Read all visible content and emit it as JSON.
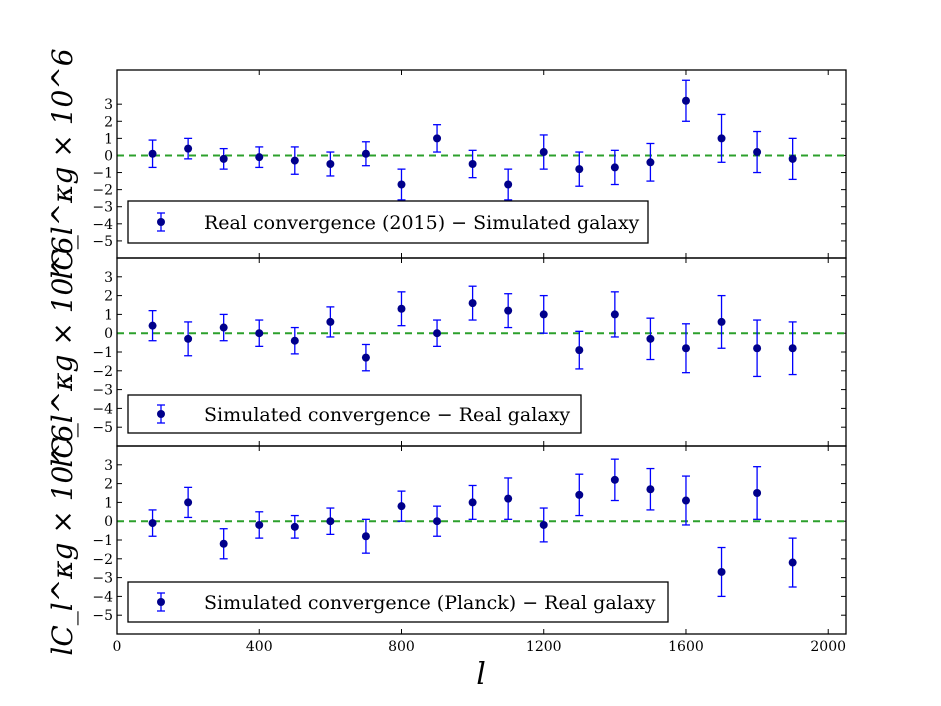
{
  "figure": {
    "xlabel": "l",
    "marker_color": "#00008B",
    "errorbar_color": "#0000FF",
    "zero_line_color": "#2CA02C"
  },
  "chart_data": [
    {
      "type": "scatter",
      "ylabel": "lC_l^κg × 10^6",
      "legend": "Real convergence (2015) − Simulated galaxy",
      "legend_position": "bottom-left",
      "xlim": [
        0,
        2050
      ],
      "ylim": [
        -6,
        5
      ],
      "yticks": [
        "3",
        "2",
        "1",
        "0",
        "−1",
        "−2",
        "−3",
        "−4",
        "−5"
      ],
      "xticks": [],
      "zero_line": true,
      "series": [
        {
          "x": [
            100,
            200,
            300,
            400,
            500,
            600,
            700,
            800,
            900,
            1000,
            1100,
            1200,
            1300,
            1400,
            1500,
            1600,
            1700,
            1800,
            1900
          ],
          "y": [
            0.1,
            0.4,
            -0.2,
            -0.1,
            -0.3,
            -0.5,
            0.1,
            -1.7,
            1.0,
            -0.5,
            -1.7,
            0.2,
            -0.8,
            -0.7,
            -0.4,
            3.2,
            1.0,
            0.2,
            -0.2
          ],
          "err": [
            0.8,
            0.6,
            0.6,
            0.6,
            0.8,
            0.7,
            0.7,
            0.9,
            0.8,
            0.8,
            0.9,
            1.0,
            1.0,
            1.0,
            1.1,
            1.2,
            1.4,
            1.2,
            1.2
          ]
        }
      ]
    },
    {
      "type": "scatter",
      "ylabel": "lC_l^κg × 10^6",
      "legend": "Simulated convergence − Real galaxy",
      "legend_position": "bottom-left",
      "xlim": [
        0,
        2050
      ],
      "ylim": [
        -6,
        4
      ],
      "yticks": [
        "3",
        "2",
        "1",
        "0",
        "−1",
        "−2",
        "−3",
        "−4",
        "−5"
      ],
      "xticks": [],
      "zero_line": true,
      "series": [
        {
          "x": [
            100,
            200,
            300,
            400,
            500,
            600,
            700,
            800,
            900,
            1000,
            1100,
            1200,
            1300,
            1400,
            1500,
            1600,
            1700,
            1800,
            1900
          ],
          "y": [
            0.4,
            -0.3,
            0.3,
            0.0,
            -0.4,
            0.6,
            -1.3,
            1.3,
            0.0,
            1.6,
            1.2,
            1.0,
            -0.9,
            1.0,
            -0.3,
            -0.8,
            0.6,
            -0.8,
            -0.8
          ],
          "err": [
            0.8,
            0.9,
            0.7,
            0.7,
            0.7,
            0.8,
            0.7,
            0.9,
            0.7,
            0.9,
            0.9,
            1.0,
            1.0,
            1.2,
            1.1,
            1.3,
            1.4,
            1.5,
            1.4
          ]
        }
      ]
    },
    {
      "type": "scatter",
      "ylabel": "lC_l^κg × 10^6",
      "legend": "Simulated convergence (Planck) − Real galaxy",
      "legend_position": "bottom-left",
      "xlim": [
        0,
        2050
      ],
      "ylim": [
        -6,
        4
      ],
      "yticks": [
        "3",
        "2",
        "1",
        "0",
        "−1",
        "−2",
        "−3",
        "−4",
        "−5"
      ],
      "xticks": [
        "0",
        "400",
        "800",
        "1200",
        "1600",
        "2000"
      ],
      "zero_line": true,
      "series": [
        {
          "x": [
            100,
            200,
            300,
            400,
            500,
            600,
            700,
            800,
            900,
            1000,
            1100,
            1200,
            1300,
            1400,
            1500,
            1600,
            1700,
            1800,
            1900
          ],
          "y": [
            -0.1,
            1.0,
            -1.2,
            -0.2,
            -0.3,
            0.0,
            -0.8,
            0.8,
            0.0,
            1.0,
            1.2,
            -0.2,
            1.4,
            2.2,
            1.7,
            1.1,
            -2.7,
            1.5,
            -2.2
          ],
          "err": [
            0.7,
            0.8,
            0.8,
            0.7,
            0.6,
            0.7,
            0.9,
            0.8,
            0.8,
            0.9,
            1.1,
            0.9,
            1.1,
            1.1,
            1.1,
            1.3,
            1.3,
            1.4,
            1.3
          ]
        }
      ]
    }
  ]
}
